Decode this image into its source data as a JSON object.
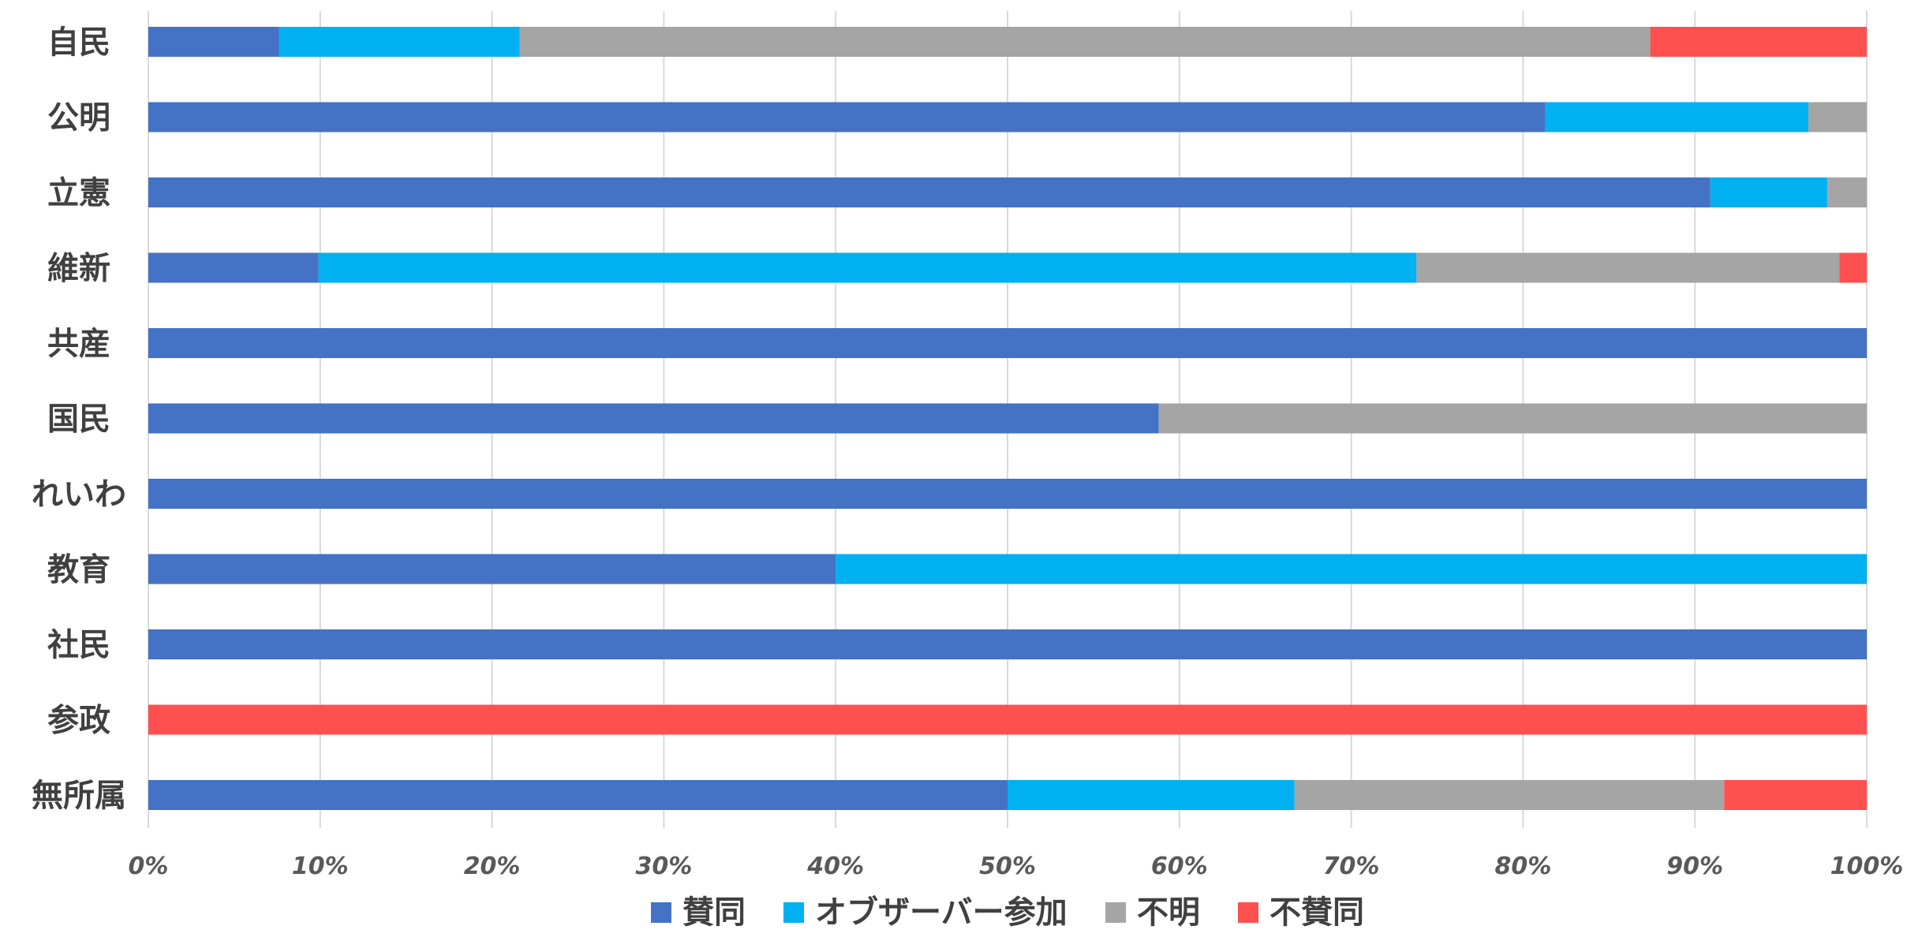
{
  "chart_data": {
    "type": "bar",
    "orientation": "horizontal",
    "stacked": true,
    "percent": true,
    "categories": [
      "自民",
      "公明",
      "立憲",
      "維新",
      "共産",
      "国民",
      "れいわ",
      "教育",
      "社民",
      "参政",
      "無所属"
    ],
    "series": [
      {
        "name": "賛同",
        "color": "#4472C4",
        "values": [
          7.6,
          81.3,
          90.9,
          9.9,
          100,
          58.8,
          100,
          40,
          100,
          0,
          50
        ]
      },
      {
        "name": "オブザーバー参加",
        "color": "#00B0F0",
        "values": [
          14.0,
          15.3,
          6.8,
          63.9,
          0,
          0,
          0,
          60,
          0,
          0,
          16.7
        ]
      },
      {
        "name": "不明",
        "color": "#A5A5A5",
        "values": [
          65.8,
          3.4,
          2.3,
          24.6,
          0,
          41.2,
          0,
          0,
          0,
          0,
          25
        ]
      },
      {
        "name": "不賛同",
        "color": "#FF5050",
        "values": [
          12.6,
          0,
          0,
          1.6,
          0,
          0,
          0,
          0,
          0,
          100,
          8.3
        ]
      }
    ],
    "xlim": [
      0,
      100
    ],
    "ticks": [
      "0%",
      "10%",
      "20%",
      "30%",
      "40%",
      "50%",
      "60%",
      "70%",
      "80%",
      "90%",
      "100%"
    ],
    "grid": true,
    "legend_position": "bottom",
    "title": "",
    "xlabel": "",
    "ylabel": ""
  }
}
